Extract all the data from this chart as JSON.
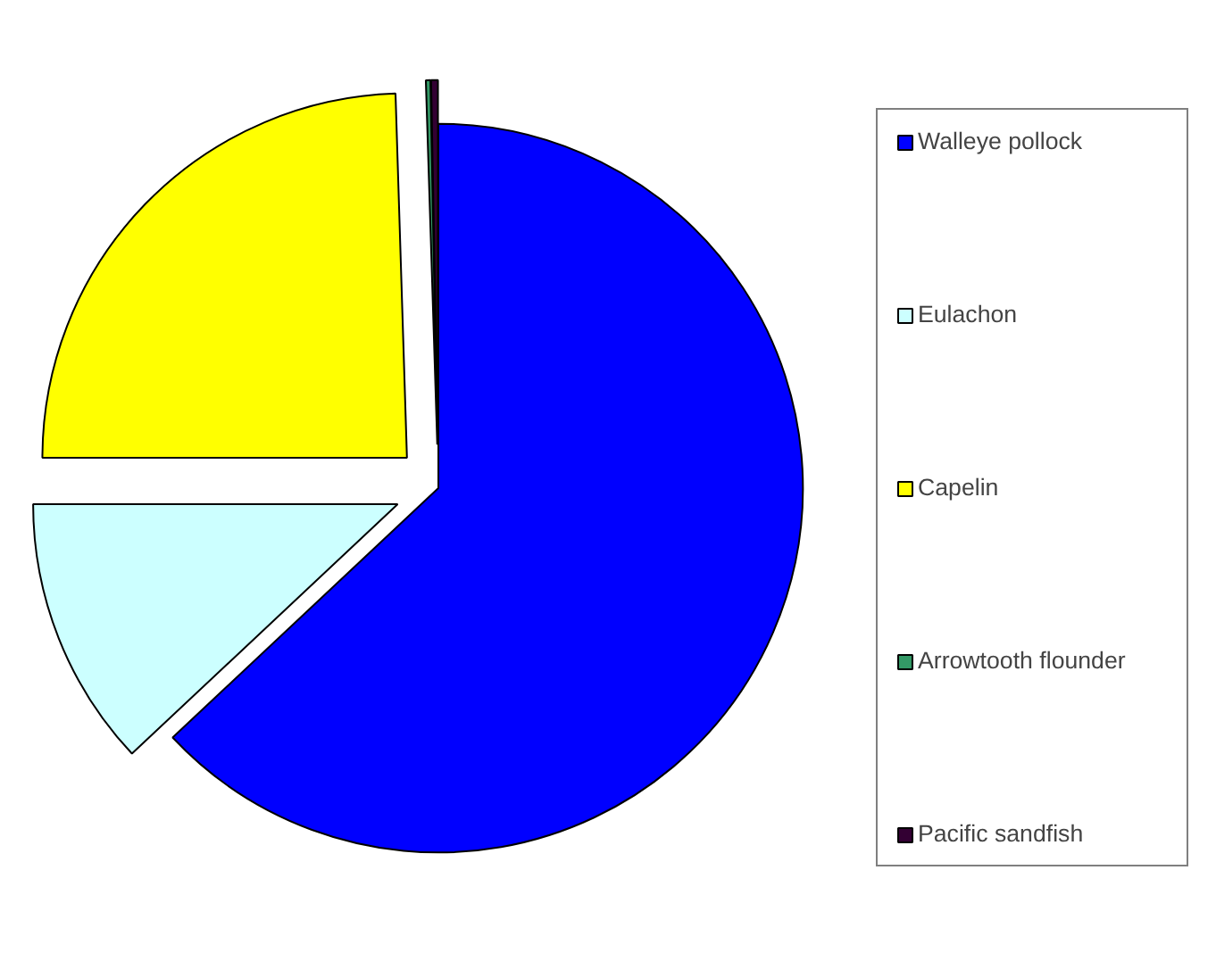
{
  "chart_data": {
    "type": "pie",
    "categories": [
      "Walleye pollock",
      "Eulachon",
      "Capelin",
      "Arrowtooth flounder",
      "Pacific sandfish"
    ],
    "values": [
      63,
      12,
      24.5,
      0.2,
      0.3
    ],
    "colors": [
      "#0000ff",
      "#ccffff",
      "#ffff00",
      "#339966",
      "#330033"
    ],
    "legend": "right"
  }
}
